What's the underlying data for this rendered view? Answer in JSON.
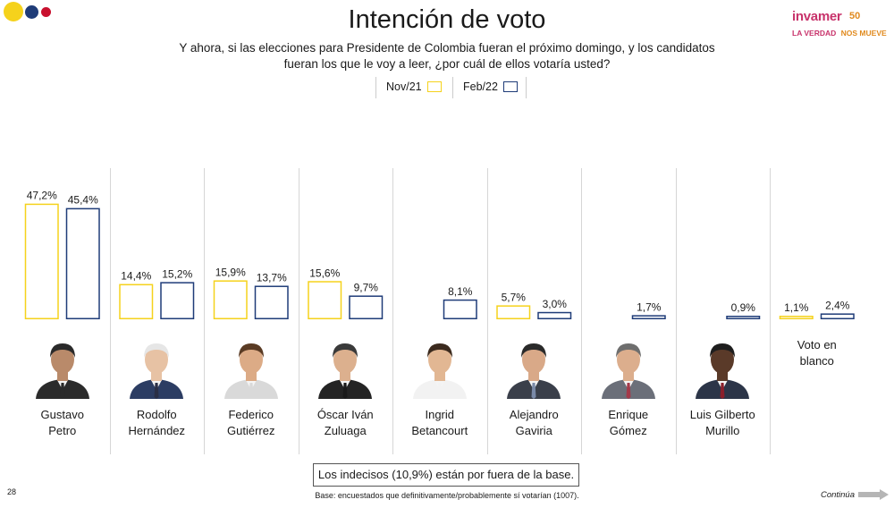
{
  "brand": {
    "logo_name": "invamer",
    "logo_anniversary": "50",
    "logo_tagline_a": "LA VERDAD",
    "logo_tagline_b": "NOS MUEVE",
    "colors": {
      "yellow": "#f5d21c",
      "blue": "#1f3c78",
      "red": "#c8102e",
      "magenta": "#c8336b",
      "orange": "#e08a1e"
    }
  },
  "header": {
    "title": "Intención de voto",
    "subtitle_line1": "Y ahora, si las elecciones para Presidente de Colombia fueran el próximo domingo, y los candidatos",
    "subtitle_line2": "fueran los que le voy a leer, ¿por cuál de ellos votaría usted?"
  },
  "chart_data": {
    "type": "bar",
    "categories": [
      "Gustavo Petro",
      "Rodolfo Hernández",
      "Federico Gutiérrez",
      "Óscar Iván Zuluaga",
      "Ingrid Betancourt",
      "Alejandro Gaviria",
      "Enrique Gómez",
      "Luis Gilberto Murillo",
      "Voto en blanco"
    ],
    "series": [
      {
        "name": "Nov/21",
        "color": "#f5d21c",
        "values": [
          47.2,
          14.4,
          15.9,
          15.6,
          null,
          5.7,
          null,
          null,
          1.1
        ],
        "labels": [
          "47,2%",
          "14,4%",
          "15,9%",
          "15,6%",
          "",
          "5,7%",
          "",
          "",
          "1,1%"
        ]
      },
      {
        "name": "Feb/22",
        "color": "#1f3c78",
        "values": [
          45.4,
          15.2,
          13.7,
          9.7,
          8.1,
          3.0,
          1.7,
          0.9,
          2.4
        ],
        "labels": [
          "45,4%",
          "15,2%",
          "13,7%",
          "9,7%",
          "8,1%",
          "3,0%",
          "1,7%",
          "0,9%",
          "2,4%"
        ]
      }
    ],
    "ylim": [
      0,
      50
    ],
    "legend": "top-center",
    "grid": false
  },
  "candidates": [
    {
      "line1": "Gustavo",
      "line2": "Petro",
      "skin": "#b98a6a",
      "hair": "#2a2a2a",
      "suit": "#2b2b2b",
      "tie": "#2b2b2b"
    },
    {
      "line1": "Rodolfo",
      "line2": "Hernández",
      "skin": "#e7c2a4",
      "hair": "#e6e6e6",
      "suit": "#2c3d63",
      "tie": "#2a2f45"
    },
    {
      "line1": "Federico",
      "line2": "Gutiérrez",
      "skin": "#dcab86",
      "hair": "#5a3b24",
      "suit": "#d9d9d9",
      "tie": "#d9d9d9"
    },
    {
      "line1": "Óscar Iván",
      "line2": "Zuluaga",
      "skin": "#dcb08e",
      "hair": "#3a3a3a",
      "suit": "#242424",
      "tie": "#1a1a1a"
    },
    {
      "line1": "Ingrid",
      "line2": "Betancourt",
      "skin": "#e2b793",
      "hair": "#3b2a1e",
      "suit": "#f2f2f2",
      "tie": "#f2f2f2"
    },
    {
      "line1": "Alejandro",
      "line2": "Gaviria",
      "skin": "#d9a988",
      "hair": "#2a2a2a",
      "suit": "#3a3f4a",
      "tie": "#7a8aa8"
    },
    {
      "line1": "Enrique",
      "line2": "Gómez",
      "skin": "#dcae8d",
      "hair": "#6e6e6e",
      "suit": "#6b6f79",
      "tie": "#a33a4a"
    },
    {
      "line1": "Luis Gilberto",
      "line2": "Murillo",
      "skin": "#5a3a29",
      "hair": "#1e1e1e",
      "suit": "#2c3548",
      "tie": "#8a1f2b"
    }
  ],
  "blank_vote": {
    "line1": "Voto en",
    "line2": "blanco"
  },
  "footer": {
    "undecided_note": "Los indecisos (10,9%) están por fuera de la base.",
    "base_note": "Base: encuestados que definitivamente/probablemente sí votarían (1007).",
    "page_number": "28",
    "next_label": "Continúa"
  }
}
